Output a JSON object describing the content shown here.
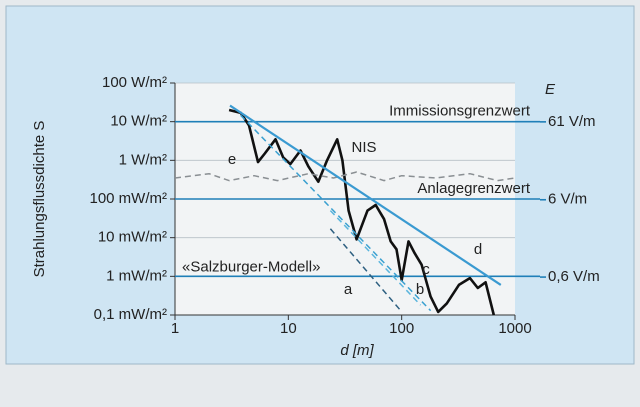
{
  "chart_data": {
    "type": "line",
    "xlog": true,
    "ylog": true,
    "ylabel": "Strahlungsflussdichte S",
    "xlabel": "d [m]",
    "y2label": "E",
    "xlim": [
      1,
      1000
    ],
    "xticks": [
      1,
      10,
      100,
      1000
    ],
    "ylim": [
      0.0001,
      100
    ],
    "yticks": [
      {
        "value": 100,
        "label": "100 W/m²"
      },
      {
        "value": 10,
        "label": "10 W/m²"
      },
      {
        "value": 1,
        "label": "1 W/m²"
      },
      {
        "value": 0.1,
        "label": "100 mW/m²"
      },
      {
        "value": 0.01,
        "label": "10 mW/m²"
      },
      {
        "value": 0.001,
        "label": "1 mW/m²"
      },
      {
        "value": 0.0001,
        "label": "0,1 mW/m²"
      }
    ],
    "y2lim": [
      0.194,
      194
    ],
    "y2ticks": [
      {
        "value": 61,
        "label": "61 V/m"
      },
      {
        "value": 6,
        "label": "6 V/m"
      },
      {
        "value": 0.6,
        "label": "0,6 V/m"
      }
    ],
    "reference_lines": [
      {
        "label": "Immissionsgrenzwert",
        "value": 10,
        "color": "#1f7fb8"
      },
      {
        "label": "Anlagegrenzwert",
        "value": 0.1,
        "color": "#1f7fb8"
      },
      {
        "label": "«Salzburger-Modell»",
        "value": 0.001,
        "color": "#1f7fb8"
      }
    ],
    "series": [
      {
        "name": "NIS",
        "color": "#111111",
        "dash": false,
        "x": [
          3.0,
          3.8,
          4.5,
          5.4,
          6.2,
          7.7,
          9.0,
          10.4,
          12.8,
          15,
          18.4,
          22,
          27,
          30,
          34,
          40,
          50,
          59,
          70,
          80,
          90,
          100,
          115,
          130,
          150,
          180,
          210,
          250,
          320,
          400,
          470,
          550,
          650
        ],
        "values": [
          20,
          17,
          8,
          0.9,
          1.5,
          3.5,
          1.2,
          0.8,
          1.8,
          0.7,
          0.28,
          1,
          3.5,
          1,
          0.05,
          0.009,
          0.05,
          0.07,
          0.03,
          0.008,
          0.005,
          0.0008,
          0.008,
          0.004,
          0.002,
          0.0003,
          0.00012,
          0.0002,
          0.0006,
          0.0009,
          0.0005,
          0.0007,
          0.0001
        ]
      },
      {
        "name": "e",
        "color": "#8a8f93",
        "dash": true,
        "x": [
          1,
          2,
          3,
          5,
          8,
          15,
          25,
          40,
          70,
          100,
          200,
          400,
          700,
          1000
        ],
        "values": [
          0.35,
          0.45,
          0.3,
          0.4,
          0.3,
          0.45,
          0.35,
          0.5,
          0.3,
          0.4,
          0.35,
          0.45,
          0.3,
          0.35
        ]
      },
      {
        "name": "a",
        "color": "#2d5f80",
        "dash": true,
        "x": [
          23.5,
          98
        ],
        "values": [
          0.017,
          0.00013
        ]
      },
      {
        "name": "b",
        "color": "#5ab5dd",
        "dash": true,
        "x": [
          23.5,
          147
        ],
        "values": [
          0.05,
          0.00018
        ]
      },
      {
        "name": "c",
        "color": "#3aa0d0",
        "dash": true,
        "x": [
          3.8,
          180
        ],
        "values": [
          14.6,
          0.00013
        ]
      },
      {
        "name": "d",
        "color": "#3a9ad1",
        "dash": false,
        "x": [
          3.06,
          750
        ],
        "values": [
          26,
          0.0006
        ]
      }
    ]
  }
}
